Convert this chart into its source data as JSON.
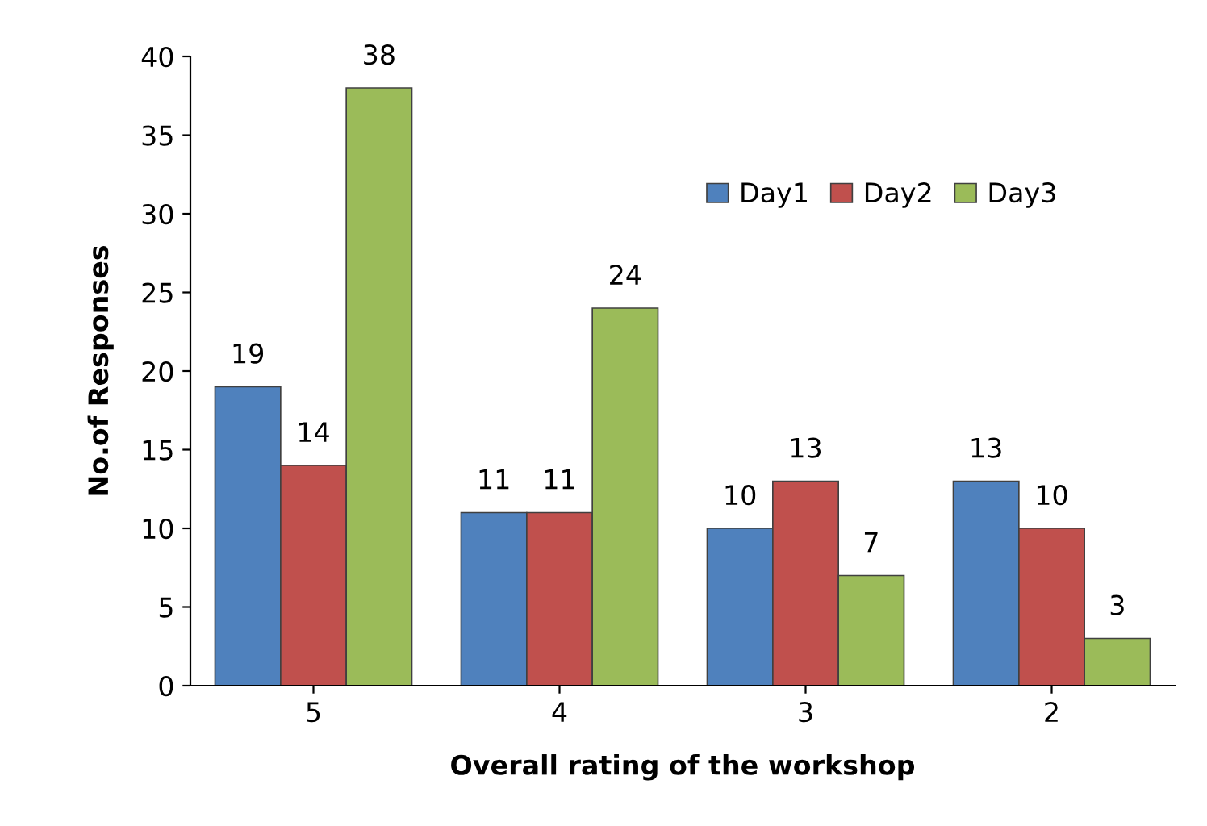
{
  "chart_data": {
    "type": "bar",
    "xlabel": "Overall rating of the workshop",
    "ylabel": "No.of Responses",
    "categories": [
      "5",
      "4",
      "3",
      "2"
    ],
    "series": [
      {
        "name": "Day1",
        "color": "#4f81bd",
        "values": [
          19,
          11,
          10,
          13
        ]
      },
      {
        "name": "Day2",
        "color": "#c0504d",
        "values": [
          14,
          11,
          13,
          10
        ]
      },
      {
        "name": "Day3",
        "color": "#9bbb59",
        "values": [
          38,
          24,
          7,
          3
        ]
      }
    ],
    "ylim": [
      0,
      40
    ],
    "yticks": [
      0,
      5,
      10,
      15,
      20,
      25,
      30,
      35,
      40
    ],
    "grid": false,
    "legend": "top right",
    "data_labels": true
  }
}
